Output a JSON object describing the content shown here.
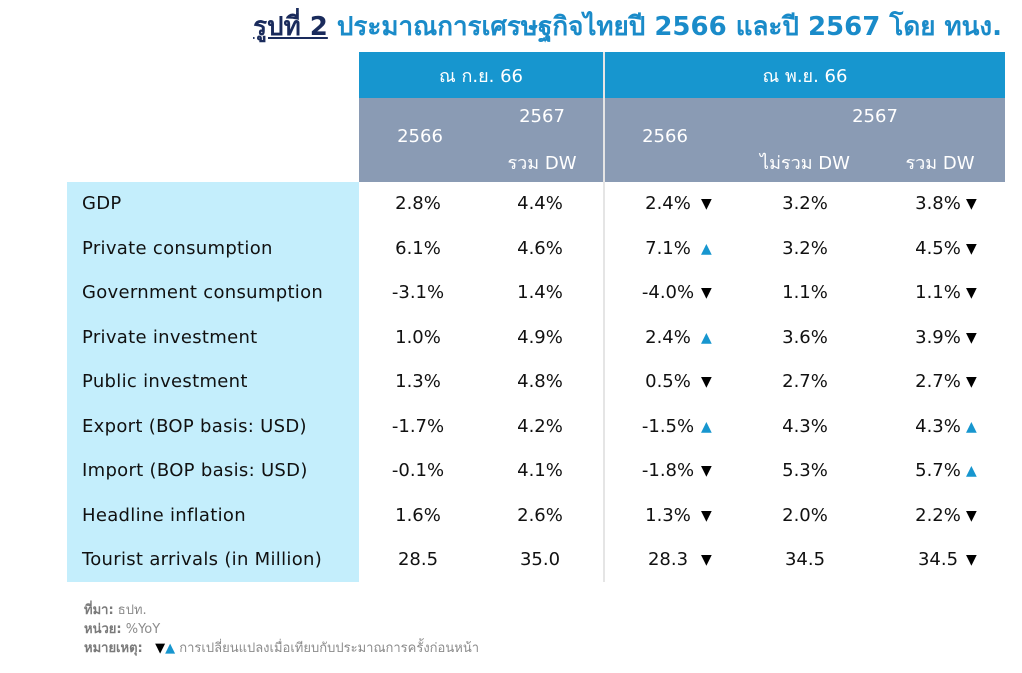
{
  "title": {
    "label": "รูปที่ 2",
    "text": "ประมาณการเศรษฐกิจไทยปี 2566 และปี 2567 โดย ทนง."
  },
  "header": {
    "group1": "ณ ก.ย. 66",
    "group2": "ณ พ.ย. 66",
    "g1_y1": "2566",
    "g1_y2": "2567",
    "g1_y2_sub": "รวม DW",
    "g2_y1": "2566",
    "g2_y2": "2567",
    "g2_sub_a": "ไม่รวม DW",
    "g2_sub_b": "รวม DW"
  },
  "rows": [
    {
      "label": "GDP",
      "v1": "2.8%",
      "v2": "4.4%",
      "v3": "2.4%",
      "a3": "▼",
      "v4": "3.2%",
      "v5": "3.8%",
      "a5": "▼"
    },
    {
      "label": "Private consumption",
      "v1": "6.1%",
      "v2": "4.6%",
      "v3": "7.1%",
      "a3": "▲",
      "v4": "3.2%",
      "v5": "4.5%",
      "a5": "▼"
    },
    {
      "label": "Government consumption",
      "v1": "-3.1%",
      "v2": "1.4%",
      "v3": "-4.0%",
      "a3": "▼",
      "v4": "1.1%",
      "v5": "1.1%",
      "a5": "▼"
    },
    {
      "label": "Private investment",
      "v1": "1.0%",
      "v2": "4.9%",
      "v3": "2.4%",
      "a3": "▲",
      "v4": "3.6%",
      "v5": "3.9%",
      "a5": "▼"
    },
    {
      "label": "Public investment",
      "v1": "1.3%",
      "v2": "4.8%",
      "v3": "0.5%",
      "a3": "▼",
      "v4": "2.7%",
      "v5": "2.7%",
      "a5": "▼"
    },
    {
      "label": "Export (BOP basis: USD)",
      "v1": "-1.7%",
      "v2": "4.2%",
      "v3": "-1.5%",
      "a3": "▲",
      "v4": "4.3%",
      "v5": "4.3%",
      "a5": "▲"
    },
    {
      "label": "Import (BOP basis: USD)",
      "v1": "-0.1%",
      "v2": "4.1%",
      "v3": "-1.8%",
      "a3": "▼",
      "v4": "5.3%",
      "v5": "5.7%",
      "a5": "▲"
    },
    {
      "label": "Headline inflation",
      "v1": "1.6%",
      "v2": "2.6%",
      "v3": "1.3%",
      "a3": "▼",
      "v4": "2.0%",
      "v5": "2.2%",
      "a5": "▼"
    },
    {
      "label": "Tourist arrivals (in Million)",
      "v1": "28.5",
      "v2": "35.0",
      "v3": "28.3",
      "a3": "▼",
      "v4": "34.5",
      "v5": "34.5",
      "a5": "▼"
    }
  ],
  "notes": {
    "source_label": "ที่มา:",
    "source_value": "ธปท.",
    "unit_label": "หน่วย:",
    "unit_value": "%YoY",
    "remark_label": "หมายเหตุ:",
    "remark_down": "▼",
    "remark_up": "▲",
    "remark_text": "การเปลี่ยนแปลงเมื่อเทียบกับประมาณการครั้งก่อนหน้า"
  },
  "colors": {
    "header_blue": "#1796cf",
    "header_gray": "#8a9bb4",
    "label_bg": "#c4eefc",
    "title_blue": "#1a8bc9",
    "title_navy": "#1a2b5c"
  }
}
